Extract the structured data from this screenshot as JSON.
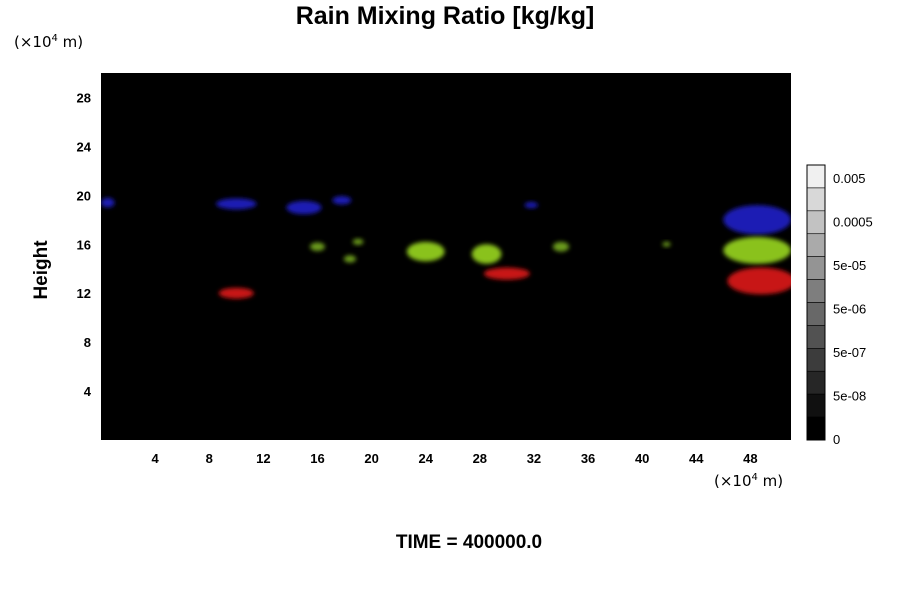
{
  "chart_data": {
    "type": "heatmap",
    "title": "Rain Mixing Ratio [kg/kg]",
    "xlabel": "",
    "ylabel": "Height",
    "x_unit": "(×10⁴ m)",
    "y_unit": "(×10⁴ m)",
    "xlim": [
      0,
      51
    ],
    "ylim": [
      0,
      30
    ],
    "x_ticks": [
      4,
      8,
      12,
      16,
      20,
      24,
      28,
      32,
      36,
      40,
      44,
      48
    ],
    "y_ticks": [
      4,
      8,
      12,
      16,
      20,
      24,
      28
    ],
    "background": "#000000",
    "colorbar": {
      "labels": [
        "0.005",
        "0.0005",
        "5e-05",
        "5e-06",
        "5e-07",
        "5e-08",
        "0"
      ],
      "colors": [
        "#f0f0f0",
        "#d8d8d8",
        "#c2c2c2",
        "#aaaaaa",
        "#949494",
        "#7e7e7e",
        "#686868",
        "#525252",
        "#3c3c3c",
        "#262626",
        "#101010",
        "#000000"
      ]
    },
    "features": [
      {
        "color": "#1a1ab4",
        "x": 0.5,
        "y": 19.4,
        "w": 1.0,
        "h": 0.8
      },
      {
        "color": "#1a1ab4",
        "x": 10.0,
        "y": 19.3,
        "w": 3.0,
        "h": 0.9
      },
      {
        "color": "#1a1ab4",
        "x": 15.0,
        "y": 19.0,
        "w": 2.6,
        "h": 1.1
      },
      {
        "color": "#1a1ab4",
        "x": 17.8,
        "y": 19.6,
        "w": 1.4,
        "h": 0.7
      },
      {
        "color": "#1a1ab4",
        "x": 31.8,
        "y": 19.2,
        "w": 1.0,
        "h": 0.5
      },
      {
        "color": "#1a1ab4",
        "x": 48.5,
        "y": 18.0,
        "w": 5.0,
        "h": 2.4
      },
      {
        "color": "#6a9a1a",
        "x": 16.0,
        "y": 15.8,
        "w": 1.1,
        "h": 0.7
      },
      {
        "color": "#6a9a1a",
        "x": 18.4,
        "y": 14.8,
        "w": 0.9,
        "h": 0.6
      },
      {
        "color": "#6a9a1a",
        "x": 19.0,
        "y": 16.2,
        "w": 0.8,
        "h": 0.5
      },
      {
        "color": "#8ac21a",
        "x": 24.0,
        "y": 15.4,
        "w": 2.8,
        "h": 1.6
      },
      {
        "color": "#8ac21a",
        "x": 28.5,
        "y": 15.2,
        "w": 2.2,
        "h": 1.6
      },
      {
        "color": "#6a9a1a",
        "x": 34.0,
        "y": 15.8,
        "w": 1.2,
        "h": 0.8
      },
      {
        "color": "#6a9a1a",
        "x": 41.8,
        "y": 16.0,
        "w": 0.6,
        "h": 0.4
      },
      {
        "color": "#8ac21a",
        "x": 48.5,
        "y": 15.5,
        "w": 5.0,
        "h": 2.2
      },
      {
        "color": "#c81414",
        "x": 10.0,
        "y": 12.0,
        "w": 2.6,
        "h": 0.9
      },
      {
        "color": "#c81414",
        "x": 30.0,
        "y": 13.6,
        "w": 3.4,
        "h": 1.0
      },
      {
        "color": "#c81414",
        "x": 48.8,
        "y": 13.0,
        "w": 5.0,
        "h": 2.2
      }
    ]
  },
  "footer": {
    "time_label": "TIME = 400000.0"
  }
}
